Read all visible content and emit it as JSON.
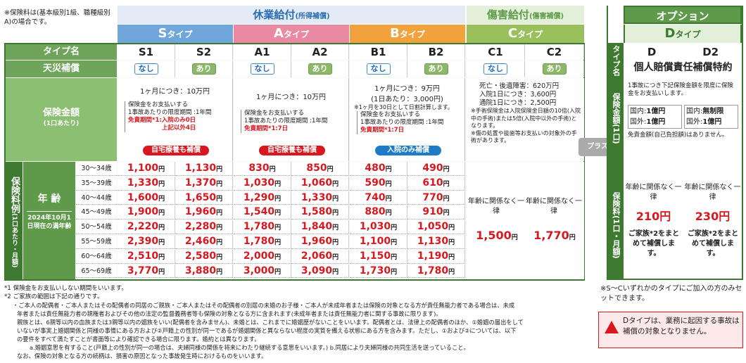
{
  "top_note": "※保険料は(基本級別1級、職種級別A)の場合です。",
  "groups": {
    "kyugyo": "休業給付",
    "kyugyo_sub": "(所得補償)",
    "shogai": "傷害給付",
    "shogai_sub": "(傷害補償)",
    "option": "オプション"
  },
  "types": [
    {
      "label": "Sタイプ",
      "big": "S",
      "small": "タイプ"
    },
    {
      "label": "Aタイプ",
      "big": "A",
      "small": "タイプ"
    },
    {
      "label": "Bタイプ",
      "big": "B",
      "small": "タイプ"
    },
    {
      "label": "Cタイプ",
      "big": "C",
      "small": "タイプ"
    },
    {
      "label": "Dタイプ",
      "big": "D",
      "small": "タイプ"
    }
  ],
  "row_labels": {
    "type_name": "タイプ名",
    "tensai": "天災補償",
    "hoken_kingaku": "保険金額",
    "hoken_kingaku_sub": "(1口あたり)",
    "hokenryo_rei": "保険料例",
    "hokenryo_rei_sub": "(1口あたり・月額)",
    "nenrei": "年 齢",
    "nenrei_note": "2024年10月1日現在の満年齢"
  },
  "plans": [
    "S1",
    "S2",
    "A1",
    "A2",
    "B1",
    "B2",
    "C1",
    "C2"
  ],
  "tensai": [
    "なし",
    "あり",
    "なし",
    "あり",
    "なし",
    "あり",
    "なし",
    "あり"
  ],
  "coverage": {
    "S": {
      "line1": "1ヶ月につき：10万円",
      "l2": "保険金をお支払いする",
      "l3": "1事故あたりの限度期間 :1年間",
      "l4": "免責期間*1:入院のみ0日",
      "l5": "上記以外4日",
      "pill": "自宅療養も補償"
    },
    "A": {
      "line1": "1ヶ月につき：10万円",
      "l2": "保険金をお支払いする",
      "l3": "1事故あたりの限度期間 :1年間",
      "l4": "免責期間*1:7日",
      "pill": "自宅療養も補償"
    },
    "B": {
      "line1": "1ヶ月につき：9万円",
      "line1b": "(1日あたり：3,000円)",
      "l2": "※1ヶ月を30日として日割計算します。",
      "l3": "保険金をお支払いする",
      "l4": "1事故あたりの限度期間 :1年間",
      "l5": "免責期間*1:7日",
      "pill": "入院のみ補償"
    },
    "C": {
      "l1": "死亡・後遺障害：620万円",
      "l2": "入院1日につき：3,600円",
      "l3": "通院1日につき：2,500円",
      "l4": "※手術保険金は入院保険金日額の10倍(入院中の手術)または5倍(入院中以外の手術)となります。",
      "l5": "※傷の処置や抜歯等お支払いの対象外の手術があります。"
    }
  },
  "ages": [
    "30～34歳",
    "35～39歳",
    "40～44歳",
    "45～49歳",
    "50～54歳",
    "55～59歳",
    "60～64歳",
    "65～69歳"
  ],
  "premiums": [
    [
      "1,100",
      "1,130",
      "830",
      "850",
      "480",
      "490"
    ],
    [
      "1,330",
      "1,370",
      "1,030",
      "1,060",
      "590",
      "610"
    ],
    [
      "1,600",
      "1,650",
      "1,290",
      "1,330",
      "740",
      "770"
    ],
    [
      "1,900",
      "1,960",
      "1,540",
      "1,580",
      "880",
      "910"
    ],
    [
      "2,220",
      "2,280",
      "1,780",
      "1,840",
      "1,030",
      "1,050"
    ],
    [
      "2,390",
      "2,460",
      "1,780",
      "1,960",
      "1,100",
      "1,130"
    ],
    [
      "2,510",
      "2,580",
      "2,000",
      "2,060",
      "1,150",
      "1,190"
    ],
    [
      "3,770",
      "3,880",
      "3,000",
      "3,090",
      "1,730",
      "1,780"
    ]
  ],
  "yen": "円",
  "c_premium": {
    "note": "年齢に関係なく一律",
    "c1": "1,500",
    "c2": "1,770"
  },
  "plus": "プラス",
  "option_d": {
    "plans": [
      "D",
      "D2"
    ],
    "title": "個人賠償責任補償特約",
    "desc": "1事故につき下記保険金額を限度に保険金をお支払いします。",
    "kokunai": "国内:",
    "kokugai": "国外:",
    "d_kokunai": "1億円",
    "d_kokugai": "1億円",
    "d2_kokunai": "無制限",
    "d2_kokugai": "1億円",
    "menseki": "免責金額(自己負担額)はありません。",
    "premium_note": "年齢に関係なく一律",
    "d_price": "210円",
    "d2_price": "230円",
    "family": "ご家族*2をまとめて補償します。",
    "side_type": "タイプ名",
    "side_kingaku": "保険金額(1口)",
    "side_ryo": "保険料(1口・月額)"
  },
  "option_note": "※S～Cいずれかのタイプにご加入の方のみセットできます。",
  "warning": "Dタイプは、業務に起因する事故は補償の対象となりません。",
  "footnotes": [
    "*1 保険金をお支払いしない期間をいいます。",
    "*2 ご家族の範囲は下記の通りです。",
    "・ご本人の配偶者・ご本人またはその配偶者の同居のご親族・ご本人またはその配偶者の別居の未婚のお子様・ご本人が未成年者または保険の対象となる方が責任無能力者である場合は、未成",
    "年者または責任無能力者の親権者およびその他の法定の監督義務者等も保険の対象となる方に含まれます(未成年者または責任無能力者に関する事故に限ります)。",
    "親族とは、6親等以内の血族または3親等以内の姻族をいい(配偶者を含みません)、未婚とは、これまでに婚姻歴がないことをいいます。配偶者とは、法律上の配偶者のほか、①婚姻の届出をして",
    "いないが事実上婚姻関係と同様の事情にある方および②戸籍上の性別が同一であるが婚姻関係と異ならない程度の実質を備える状態にある方を含みます。ただし、①および②については、以下",
    "の要件をすべて満たすことが書面等により確認できる場合に限ります。婚約とは異なります。",
    "a.婚姻意思を有すること(戸籍上の性別が同一の場合は、夫婦同様の関係を将来にわたり継続する意思をいいます。)  b.同居により夫婦同様の共同生活を送っていること。",
    "なお、保険の対象となる方の続柄は、損害の原因となった事故発生時におけるものをいいます。"
  ]
}
